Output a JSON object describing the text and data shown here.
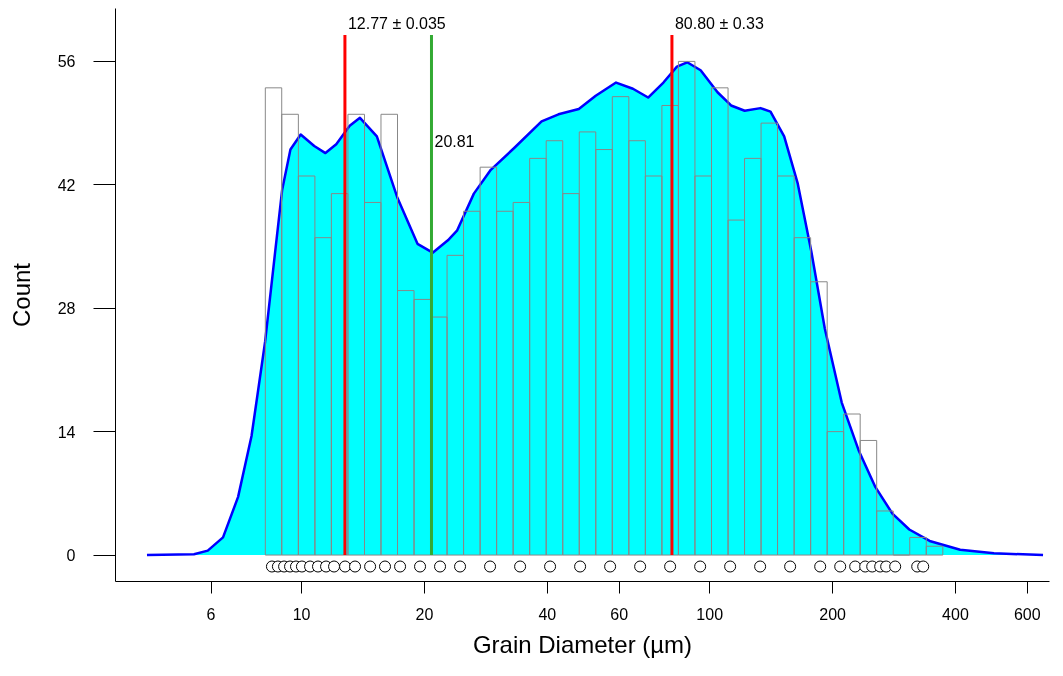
{
  "chart_data": {
    "type": "histogram",
    "xlabel": "Grain Diameter (µm)",
    "ylabel": "Count",
    "log": "x",
    "xlim": [
      3.5,
      680
    ],
    "xticks": [
      6,
      10,
      20,
      40,
      60,
      100,
      200,
      400,
      600
    ],
    "ylim": [
      -3,
      62
    ],
    "yticks": [
      0,
      14,
      28,
      42,
      56
    ],
    "grid": false,
    "series": [
      {
        "type": "area",
        "color": "#00ffff",
        "x": [
          4.18,
          5.45,
          5.89,
          6.42,
          6.99,
          7.54,
          8.14,
          8.62,
          8.96,
          9.39,
          9.95,
          10.74,
          11.44,
          12.16,
          13.12,
          13.9,
          15.29,
          17.15,
          19.23,
          20.95,
          22.83,
          24.03,
          26.43,
          29.08,
          33.23,
          38.73,
          42.61,
          47.78,
          52.56,
          58.95,
          64.84,
          70.65,
          77.01,
          83.11,
          88.05,
          95.0,
          104.5,
          112.8,
          121.8,
          133.2,
          140.9,
          152.2,
          164.2,
          177.3,
          191.4,
          210.6,
          231.6,
          254.7,
          280.3,
          308.3,
          345.8,
          410.8,
          497.1,
          655.7
        ],
        "values": [
          0,
          0.1,
          0.5,
          2.0,
          6.6,
          13.5,
          24.2,
          34.5,
          41.4,
          46.0,
          47.7,
          46.4,
          45.6,
          46.6,
          48.7,
          49.6,
          47.5,
          40.6,
          35.3,
          34.3,
          35.7,
          36.8,
          41.0,
          43.7,
          46.2,
          49.2,
          50.0,
          50.6,
          52.1,
          53.6,
          52.9,
          51.9,
          53.6,
          55.4,
          55.9,
          55.0,
          52.5,
          51.0,
          50.4,
          50.7,
          50.3,
          47.5,
          42.2,
          34.5,
          25.7,
          17.3,
          11.9,
          7.7,
          4.7,
          2.9,
          1.6,
          0.6,
          0.2,
          0
        ]
      },
      {
        "color": "#888888",
        "bins": [
          8.15,
          8.94,
          9.82,
          10.78,
          11.83,
          12.99,
          14.26,
          15.65,
          17.18,
          18.86,
          20.7,
          22.72,
          24.94,
          27.38,
          30.05,
          32.99,
          36.21,
          39.75,
          43.64,
          47.9,
          52.58,
          57.72,
          63.36,
          69.55,
          76.35,
          83.81,
          92.0,
          101.0,
          110.9,
          121.7,
          133.6,
          146.6,
          161.0,
          176.7,
          194.0,
          212.9,
          233.7,
          256.5,
          281.6,
          309.1,
          339.3,
          372.5
        ],
        "values": [
          53,
          50,
          43,
          36,
          41,
          50,
          40,
          50,
          30,
          29,
          27,
          34,
          39,
          44,
          39,
          40,
          45,
          47,
          41,
          48,
          46,
          52,
          47,
          43,
          51,
          56,
          43,
          53,
          38,
          45,
          49,
          43,
          36,
          31,
          14,
          16,
          13,
          5,
          0,
          2,
          1
        ]
      },
      {
        "type": "scatter",
        "color": "#000000",
        "marker": "circle",
        "x": [
          8.46,
          8.75,
          9.06,
          9.37,
          9.69,
          10.02,
          10.49,
          10.97,
          11.48,
          12.01,
          12.78,
          13.52,
          14.72,
          16.01,
          17.43,
          19.51,
          21.84,
          24.45,
          28.96,
          34.31,
          40.63,
          48.13,
          57.01,
          67.53,
          79.98,
          94.74,
          112.2,
          132.9,
          157.4,
          186.5,
          208.8,
          227.2,
          240.4,
          250.1,
          261.6,
          270.6,
          284.7,
          322.4,
          333.5
        ],
        "values": [
          -1.3,
          -1.3,
          -1.3,
          -1.3,
          -1.3,
          -1.3,
          -1.3,
          -1.3,
          -1.3,
          -1.3,
          -1.3,
          -1.3,
          -1.3,
          -1.3,
          -1.3,
          -1.3,
          -1.3,
          -1.3,
          -1.3,
          -1.3,
          -1.3,
          -1.3,
          -1.3,
          -1.3,
          -1.3,
          -1.3,
          -1.3,
          -1.3,
          -1.3,
          -1.3,
          -1.3,
          -1.3,
          -1.3,
          -1.3,
          -1.3,
          -1.3,
          -1.3,
          -1.3,
          -1.3
        ]
      }
    ],
    "ref_lines": [
      {
        "axis": "x",
        "value": 12.77,
        "color": "#ff0000"
      },
      {
        "axis": "x",
        "value": 20.81,
        "color": "#33aa33"
      },
      {
        "axis": "x",
        "value": 80.8,
        "color": "#ff0000"
      }
    ],
    "annotations": [
      {
        "text": "12.77 ± 0.035",
        "x": 12.77,
        "y": 59
      },
      {
        "text": "20.81",
        "x": 20.81,
        "y": 46
      },
      {
        "text": "80.80 ± 0.33",
        "x": 80.8,
        "y": 59
      }
    ]
  }
}
